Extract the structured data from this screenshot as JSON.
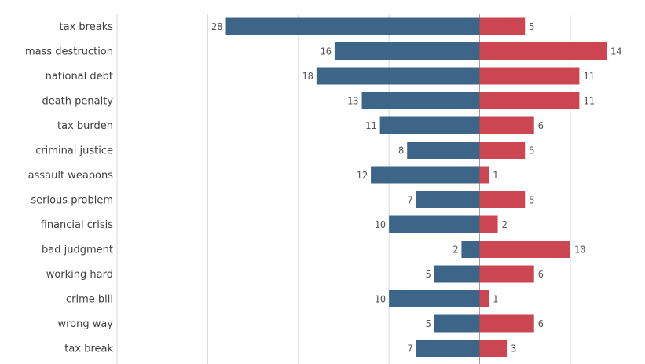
{
  "chart_data": {
    "type": "bar",
    "orientation": "horizontal-diverging",
    "categories": [
      "tax breaks",
      "mass destruction",
      "national debt",
      "death penalty",
      "tax burden",
      "criminal justice",
      "assault weapons",
      "serious problem",
      "financial crisis",
      "bad judgment",
      "working hard",
      "crime bill",
      "wrong way",
      "tax break"
    ],
    "series": [
      {
        "values": [
          28,
          16,
          18,
          13,
          11,
          8,
          12,
          7,
          10,
          2,
          5,
          10,
          5,
          7
        ],
        "color": "#3d6587",
        "side": "left"
      },
      {
        "values": [
          5,
          14,
          11,
          11,
          6,
          5,
          1,
          5,
          2,
          10,
          6,
          1,
          6,
          3
        ],
        "color": "#cb4650",
        "side": "right"
      }
    ],
    "xlim": [
      -40,
      20
    ],
    "grid": true,
    "title": "",
    "xlabel": "",
    "ylabel": ""
  }
}
